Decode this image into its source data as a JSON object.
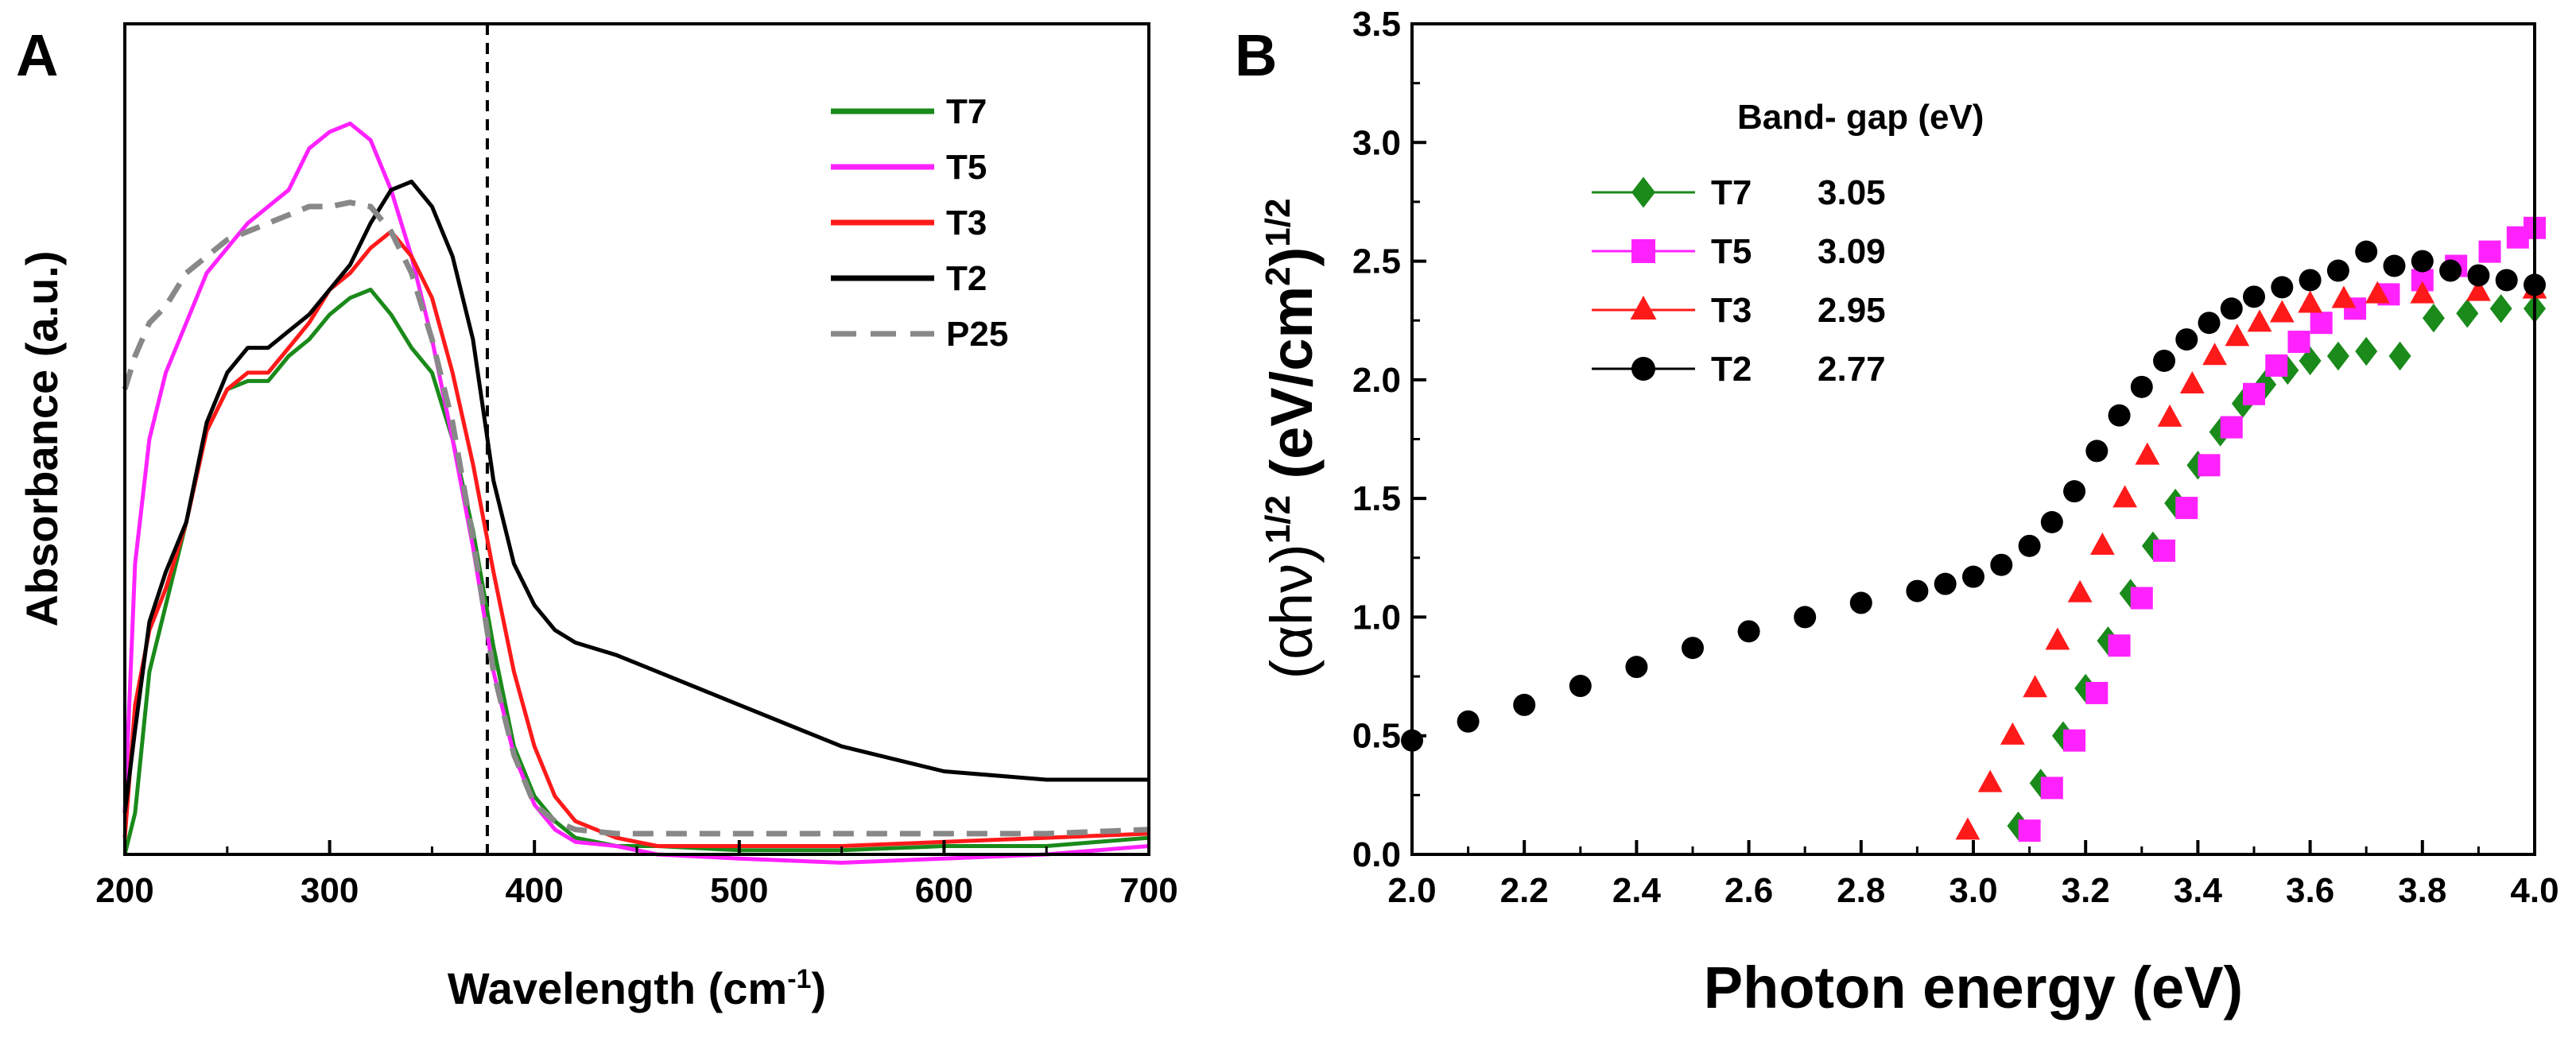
{
  "chart_data": [
    {
      "panel": "A",
      "type": "line",
      "xlabel_main": "Wavelength (cm",
      "xlabel_sup": "-1",
      "xlabel_close": ")",
      "ylabel": "Absorbance (a.u.)",
      "xlim": [
        200,
        700
      ],
      "ylim": [
        0,
        1
      ],
      "xticks": [
        "200",
        "300",
        "400",
        "500",
        "600",
        "700"
      ],
      "vline_x": 377,
      "legend_position": "top-right",
      "series": [
        {
          "name": "T7",
          "color": "#1a8a1a",
          "dash": false,
          "x": [
            200,
            205,
            212,
            220,
            230,
            240,
            250,
            260,
            270,
            280,
            290,
            300,
            310,
            320,
            330,
            340,
            350,
            360,
            370,
            380,
            390,
            400,
            410,
            420,
            440,
            460,
            500,
            550,
            600,
            650,
            700
          ],
          "y": [
            0.0,
            0.05,
            0.22,
            0.3,
            0.4,
            0.51,
            0.56,
            0.57,
            0.57,
            0.6,
            0.62,
            0.65,
            0.67,
            0.68,
            0.65,
            0.61,
            0.58,
            0.5,
            0.39,
            0.25,
            0.13,
            0.07,
            0.04,
            0.02,
            0.01,
            0.01,
            0.005,
            0.005,
            0.01,
            0.01,
            0.02
          ]
        },
        {
          "name": "T5",
          "color": "#ff22ff",
          "dash": false,
          "x": [
            200,
            205,
            212,
            220,
            230,
            240,
            250,
            260,
            270,
            280,
            290,
            300,
            310,
            320,
            330,
            340,
            350,
            360,
            370,
            380,
            390,
            400,
            410,
            420,
            440,
            460,
            500,
            550,
            600,
            650,
            700
          ],
          "y": [
            0.05,
            0.35,
            0.5,
            0.58,
            0.64,
            0.7,
            0.73,
            0.76,
            0.78,
            0.8,
            0.85,
            0.87,
            0.88,
            0.86,
            0.8,
            0.72,
            0.62,
            0.5,
            0.37,
            0.22,
            0.12,
            0.06,
            0.03,
            0.015,
            0.01,
            0.0,
            -0.005,
            -0.01,
            -0.005,
            0.0,
            0.01
          ]
        },
        {
          "name": "T3",
          "color": "#ff1a1a",
          "dash": false,
          "x": [
            200,
            205,
            212,
            220,
            230,
            240,
            250,
            260,
            270,
            280,
            290,
            300,
            310,
            320,
            330,
            340,
            350,
            360,
            370,
            380,
            390,
            400,
            410,
            420,
            440,
            460,
            500,
            550,
            600,
            650,
            700
          ],
          "y": [
            0.02,
            0.18,
            0.27,
            0.32,
            0.4,
            0.51,
            0.56,
            0.58,
            0.58,
            0.61,
            0.64,
            0.68,
            0.7,
            0.73,
            0.75,
            0.72,
            0.67,
            0.58,
            0.47,
            0.34,
            0.22,
            0.13,
            0.07,
            0.04,
            0.02,
            0.01,
            0.01,
            0.01,
            0.015,
            0.02,
            0.025
          ]
        },
        {
          "name": "T2",
          "color": "#000000",
          "dash": false,
          "x": [
            200,
            205,
            212,
            220,
            230,
            240,
            250,
            260,
            270,
            280,
            290,
            300,
            310,
            320,
            330,
            340,
            350,
            360,
            370,
            380,
            390,
            400,
            410,
            420,
            440,
            460,
            500,
            550,
            600,
            650,
            700
          ],
          "y": [
            0.05,
            0.15,
            0.28,
            0.34,
            0.4,
            0.52,
            0.58,
            0.61,
            0.61,
            0.63,
            0.65,
            0.68,
            0.71,
            0.76,
            0.8,
            0.81,
            0.78,
            0.72,
            0.62,
            0.45,
            0.35,
            0.3,
            0.27,
            0.255,
            0.24,
            0.22,
            0.18,
            0.13,
            0.1,
            0.09,
            0.09
          ]
        },
        {
          "name": "P25",
          "color": "#888888",
          "dash": true,
          "x": [
            200,
            205,
            212,
            220,
            230,
            240,
            250,
            260,
            270,
            280,
            290,
            300,
            310,
            320,
            330,
            340,
            350,
            360,
            370,
            380,
            390,
            400,
            410,
            420,
            440,
            460,
            500,
            550,
            600,
            650,
            700
          ],
          "y": [
            0.56,
            0.6,
            0.64,
            0.66,
            0.7,
            0.72,
            0.74,
            0.75,
            0.76,
            0.77,
            0.78,
            0.78,
            0.785,
            0.78,
            0.75,
            0.7,
            0.62,
            0.52,
            0.38,
            0.22,
            0.12,
            0.06,
            0.04,
            0.03,
            0.025,
            0.025,
            0.025,
            0.025,
            0.025,
            0.025,
            0.03
          ]
        }
      ]
    },
    {
      "panel": "B",
      "type": "scatter",
      "xlabel": "Photon energy (eV)",
      "ylabel_base": "(αhν)",
      "ylabel_sup1": "1/2",
      "ylabel_unit": " (eV/cm",
      "ylabel_sup2": "2",
      "ylabel_close": ")",
      "ylabel_sup3": "1/2",
      "xlim": [
        2.0,
        4.0
      ],
      "ylim": [
        0.0,
        3.5
      ],
      "xticks": [
        "2.0",
        "2.2",
        "2.4",
        "2.6",
        "2.8",
        "3.0",
        "3.2",
        "3.4",
        "3.6",
        "3.8",
        "4.0"
      ],
      "yticks": [
        "0.0",
        "0.5",
        "1.0",
        "1.5",
        "2.0",
        "2.5",
        "3.0",
        "3.5"
      ],
      "legend_title": "Band- gap (eV)",
      "legend_position": "top-left",
      "series": [
        {
          "name": "T7",
          "band_gap": "3.05",
          "color": "#1a8a1a",
          "marker": "diamond",
          "x": [
            3.08,
            3.12,
            3.16,
            3.2,
            3.24,
            3.28,
            3.32,
            3.36,
            3.4,
            3.44,
            3.48,
            3.52,
            3.56,
            3.6,
            3.65,
            3.7,
            3.76,
            3.82,
            3.88,
            3.94,
            4.0
          ],
          "y": [
            0.12,
            0.3,
            0.5,
            0.7,
            0.9,
            1.1,
            1.3,
            1.48,
            1.64,
            1.78,
            1.9,
            1.98,
            2.04,
            2.08,
            2.1,
            2.12,
            2.1,
            2.26,
            2.28,
            2.3,
            2.3
          ]
        },
        {
          "name": "T5",
          "band_gap": "3.09",
          "color": "#ff22ff",
          "marker": "square",
          "x": [
            3.1,
            3.14,
            3.18,
            3.22,
            3.26,
            3.3,
            3.34,
            3.38,
            3.42,
            3.46,
            3.5,
            3.54,
            3.58,
            3.62,
            3.68,
            3.74,
            3.8,
            3.86,
            3.92,
            3.97,
            4.0
          ],
          "y": [
            0.1,
            0.28,
            0.48,
            0.68,
            0.88,
            1.08,
            1.28,
            1.46,
            1.64,
            1.8,
            1.94,
            2.06,
            2.16,
            2.24,
            2.3,
            2.36,
            2.42,
            2.48,
            2.54,
            2.6,
            2.64
          ]
        },
        {
          "name": "T3",
          "band_gap": "2.95",
          "color": "#ff1a1a",
          "marker": "triangle",
          "x": [
            2.99,
            3.03,
            3.07,
            3.11,
            3.15,
            3.19,
            3.23,
            3.27,
            3.31,
            3.35,
            3.39,
            3.43,
            3.47,
            3.51,
            3.55,
            3.6,
            3.66,
            3.72,
            3.8,
            3.9,
            4.0
          ],
          "y": [
            0.1,
            0.3,
            0.5,
            0.7,
            0.9,
            1.1,
            1.3,
            1.5,
            1.68,
            1.84,
            1.98,
            2.1,
            2.18,
            2.24,
            2.28,
            2.32,
            2.34,
            2.36,
            2.36,
            2.37,
            2.38
          ]
        },
        {
          "name": "T2",
          "band_gap": "2.77",
          "color": "#000000",
          "marker": "circle",
          "x": [
            2.0,
            2.1,
            2.2,
            2.3,
            2.4,
            2.5,
            2.6,
            2.7,
            2.8,
            2.9,
            2.95,
            3.0,
            3.05,
            3.1,
            3.14,
            3.18,
            3.22,
            3.26,
            3.3,
            3.34,
            3.38,
            3.42,
            3.46,
            3.5,
            3.55,
            3.6,
            3.65,
            3.7,
            3.75,
            3.8,
            3.85,
            3.9,
            3.95,
            4.0
          ],
          "y": [
            0.48,
            0.56,
            0.63,
            0.71,
            0.79,
            0.87,
            0.94,
            1.0,
            1.06,
            1.11,
            1.14,
            1.17,
            1.22,
            1.3,
            1.4,
            1.53,
            1.7,
            1.85,
            1.97,
            2.08,
            2.17,
            2.24,
            2.3,
            2.35,
            2.39,
            2.42,
            2.46,
            2.54,
            2.48,
            2.5,
            2.46,
            2.44,
            2.42,
            2.4
          ]
        }
      ]
    }
  ]
}
